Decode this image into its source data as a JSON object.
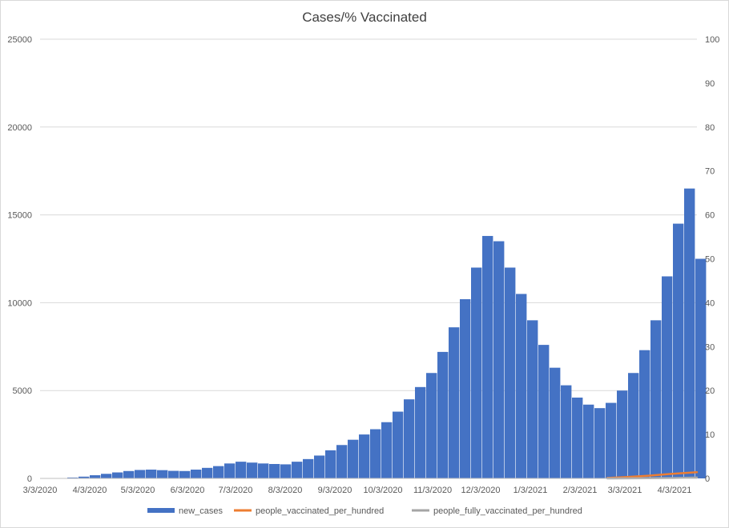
{
  "chart_data": {
    "type": "bar",
    "title": "Cases/% Vaccinated",
    "xlabel": "",
    "ylabel": "",
    "ylim": [
      0,
      25000
    ],
    "y2lim": [
      0,
      100
    ],
    "y_ticks": [
      "0",
      "5000",
      "10000",
      "15000",
      "20000",
      "25000"
    ],
    "y2_ticks": [
      "0",
      "10",
      "20",
      "30",
      "40",
      "50",
      "60",
      "70",
      "80",
      "90",
      "100"
    ],
    "x_ticks": [
      "3/3/2020",
      "4/3/2020",
      "5/3/2020",
      "6/3/2020",
      "7/3/2020",
      "8/3/2020",
      "9/3/2020",
      "10/3/2020",
      "11/3/2020",
      "12/3/2020",
      "1/3/2021",
      "2/3/2021",
      "3/3/2021",
      "4/3/2021"
    ],
    "x_range": [
      "3/3/2020",
      "4/17/2021"
    ],
    "grid": true,
    "legend_position": "bottom",
    "series": [
      {
        "name": "new_cases",
        "type": "bar",
        "axis": "left",
        "color": "#4472c4",
        "points": [
          [
            "3/20/2020",
            50
          ],
          [
            "3/27/2020",
            100
          ],
          [
            "4/3/2020",
            180
          ],
          [
            "4/10/2020",
            260
          ],
          [
            "4/17/2020",
            340
          ],
          [
            "4/24/2020",
            420
          ],
          [
            "5/1/2020",
            480
          ],
          [
            "5/8/2020",
            500
          ],
          [
            "5/15/2020",
            470
          ],
          [
            "5/22/2020",
            430
          ],
          [
            "5/29/2020",
            420
          ],
          [
            "6/5/2020",
            500
          ],
          [
            "6/12/2020",
            600
          ],
          [
            "6/19/2020",
            700
          ],
          [
            "6/26/2020",
            850
          ],
          [
            "7/3/2020",
            950
          ],
          [
            "7/10/2020",
            900
          ],
          [
            "7/17/2020",
            850
          ],
          [
            "7/24/2020",
            820
          ],
          [
            "7/31/2020",
            800
          ],
          [
            "8/7/2020",
            950
          ],
          [
            "8/14/2020",
            1100
          ],
          [
            "8/21/2020",
            1300
          ],
          [
            "8/28/2020",
            1600
          ],
          [
            "9/4/2020",
            1900
          ],
          [
            "9/11/2020",
            2200
          ],
          [
            "9/18/2020",
            2500
          ],
          [
            "9/25/2020",
            2800
          ],
          [
            "10/2/2020",
            3200
          ],
          [
            "10/9/2020",
            3800
          ],
          [
            "10/16/2020",
            4500
          ],
          [
            "10/23/2020",
            5200
          ],
          [
            "10/30/2020",
            6000
          ],
          [
            "11/6/2020",
            7200
          ],
          [
            "11/13/2020",
            8600
          ],
          [
            "11/20/2020",
            10200
          ],
          [
            "11/27/2020",
            12000
          ],
          [
            "12/4/2020",
            13800
          ],
          [
            "12/11/2020",
            13500
          ],
          [
            "12/18/2020",
            12000
          ],
          [
            "12/25/2020",
            10500
          ],
          [
            "1/1/2021",
            9000
          ],
          [
            "1/8/2021",
            7600
          ],
          [
            "1/15/2021",
            6300
          ],
          [
            "1/22/2021",
            5300
          ],
          [
            "1/29/2021",
            4600
          ],
          [
            "2/5/2021",
            4200
          ],
          [
            "2/12/2021",
            4000
          ],
          [
            "2/19/2021",
            4300
          ],
          [
            "2/26/2021",
            5000
          ],
          [
            "3/5/2021",
            6000
          ],
          [
            "3/12/2021",
            7300
          ],
          [
            "3/19/2021",
            9000
          ],
          [
            "3/26/2021",
            11500
          ],
          [
            "4/2/2021",
            14500
          ],
          [
            "4/9/2021",
            16500
          ],
          [
            "4/16/2021",
            12500
          ]
        ]
      },
      {
        "name": "people_vaccinated_per_hundred",
        "type": "line",
        "axis": "right",
        "color": "#ed7d31",
        "points": [
          [
            "2/20/2021",
            0.1
          ],
          [
            "3/3/2021",
            0.3
          ],
          [
            "3/17/2021",
            0.6
          ],
          [
            "3/31/2021",
            1.0
          ],
          [
            "4/17/2021",
            1.4
          ]
        ]
      },
      {
        "name": "people_fully_vaccinated_per_hundred",
        "type": "line",
        "axis": "right",
        "color": "#a5a5a5",
        "points": [
          [
            "2/20/2021",
            0.0
          ],
          [
            "3/17/2021",
            0.05
          ],
          [
            "4/3/2021",
            0.1
          ],
          [
            "4/17/2021",
            0.2
          ]
        ]
      }
    ]
  }
}
